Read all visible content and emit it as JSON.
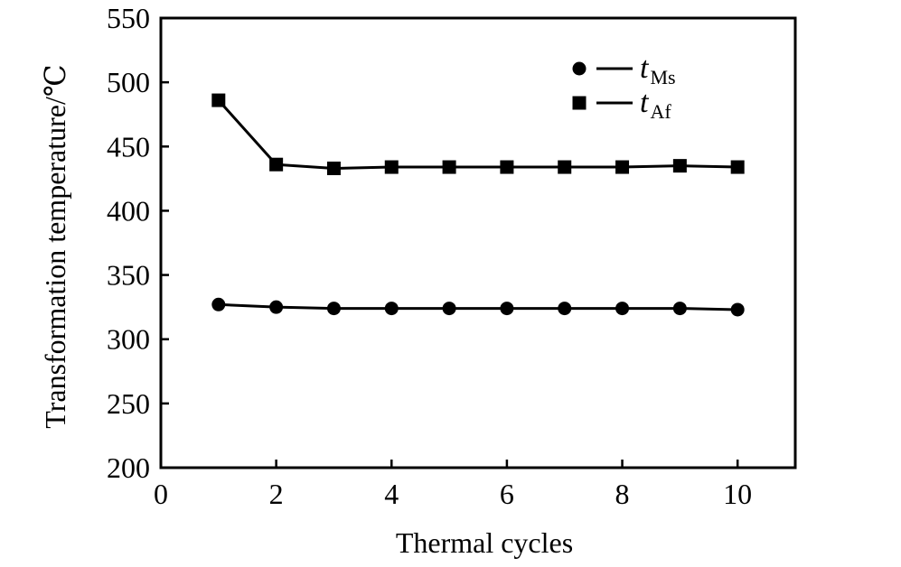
{
  "chart_data": {
    "type": "line",
    "title": "",
    "xlabel": "Thermal cycles",
    "ylabel": "Transformation temperature/℃",
    "xlim": [
      0,
      11
    ],
    "ylim": [
      200,
      550
    ],
    "xticks": [
      0,
      2,
      4,
      6,
      8,
      10
    ],
    "yticks": [
      200,
      250,
      300,
      350,
      400,
      450,
      500,
      550
    ],
    "grid": false,
    "legend_position": "top-right",
    "x": [
      1,
      2,
      3,
      4,
      5,
      6,
      7,
      8,
      9,
      10
    ],
    "series": [
      {
        "name_main": "t",
        "name_sub": "Ms",
        "marker": "circle",
        "color": "#000000",
        "values": [
          327,
          325,
          324,
          324,
          324,
          324,
          324,
          324,
          324,
          323
        ]
      },
      {
        "name_main": "t",
        "name_sub": "Af",
        "marker": "square",
        "color": "#000000",
        "values": [
          486,
          436,
          433,
          434,
          434,
          434,
          434,
          434,
          435,
          434
        ]
      }
    ]
  }
}
